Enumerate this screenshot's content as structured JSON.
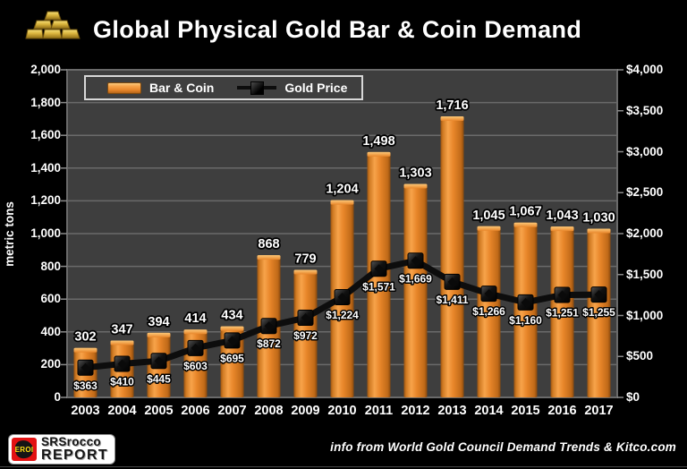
{
  "header": {
    "title": "Global Physical Gold Bar & Coin Demand"
  },
  "footer": {
    "eroi_badge": "EROI",
    "logo_top": "SRSrocco",
    "logo_bottom": "REPORT",
    "info": "info from World Gold Council Demand Trends & Kitco.com"
  },
  "chart_data": {
    "type": "bar",
    "subtype": "bar+line combo, dual axis",
    "title": "Global Physical Gold Bar & Coin Demand",
    "categories": [
      "2003",
      "2004",
      "2005",
      "2006",
      "2007",
      "2008",
      "2009",
      "2010",
      "2011",
      "2012",
      "2013",
      "2014",
      "2015",
      "2016",
      "2017"
    ],
    "series": [
      {
        "name": "Bar & Coin",
        "type": "bar",
        "axis": "left",
        "unit": "metric tons",
        "values": [
          302,
          347,
          394,
          414,
          434,
          868,
          779,
          1204,
          1498,
          1303,
          1716,
          1045,
          1067,
          1043,
          1030
        ],
        "labels": [
          "302",
          "347",
          "394",
          "414",
          "434",
          "868",
          "779",
          "1,204",
          "1,498",
          "1,303",
          "1,716",
          "1,045",
          "1,067",
          "1,043",
          "1,030"
        ]
      },
      {
        "name": "Gold Price",
        "type": "line",
        "axis": "right",
        "unit": "USD",
        "values": [
          363,
          410,
          445,
          603,
          695,
          872,
          972,
          1224,
          1571,
          1669,
          1411,
          1266,
          1160,
          1251,
          1255
        ],
        "labels": [
          "$363",
          "$410",
          "$445",
          "$603",
          "$695",
          "$872",
          "$972",
          "$1,224",
          "$1,571",
          "$1,669",
          "$1,411",
          "$1,266",
          "$1,160",
          "$1,251",
          "$1,255"
        ]
      }
    ],
    "left_axis": {
      "label": "metric tons",
      "min": 0,
      "max": 2000,
      "step": 200,
      "ticks": [
        "2,000",
        "1,800",
        "1,600",
        "1,400",
        "1,200",
        "1,000",
        "800",
        "600",
        "400",
        "200",
        "0"
      ]
    },
    "right_axis": {
      "min": 0,
      "max": 4000,
      "step": 500,
      "ticks": [
        "$4,000",
        "$3,500",
        "$3,000",
        "$2,500",
        "$2,000",
        "$1,500",
        "$1,000",
        "$500",
        "$0"
      ]
    },
    "legend_position": "top-left",
    "grid": true,
    "colors": {
      "bar": "#e8862a",
      "bar_light": "#f7a34a",
      "bar_dark": "#9a5210",
      "line": "#0d0d0d",
      "plot_bg": "#3e3e3e",
      "grid": "#6a6a6a",
      "background": "#000000",
      "text": "#ffffff"
    }
  }
}
